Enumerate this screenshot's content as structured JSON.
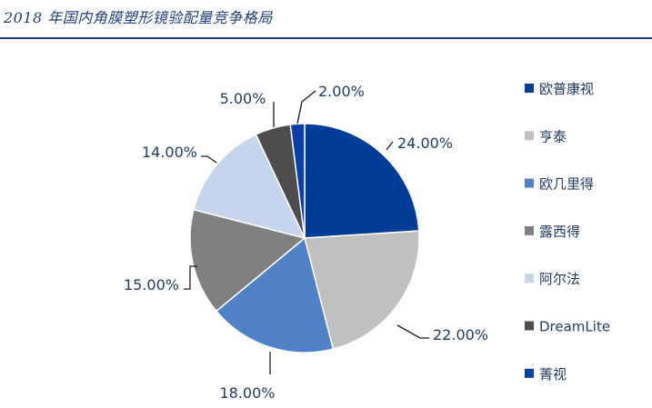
{
  "header": {
    "title": "2018 年国内角膜塑形镜验配量竞争格局"
  },
  "chart_data": {
    "type": "pie",
    "title": "2018 年国内角膜塑形镜验配量竞争格局",
    "series": [
      {
        "name": "欧普康视",
        "value": 24,
        "label": "24.00%",
        "color": "#003d99"
      },
      {
        "name": "亨泰",
        "value": 22,
        "label": "22.00%",
        "color": "#c0c0c0"
      },
      {
        "name": "欧几里得",
        "value": 18,
        "label": "18.00%",
        "color": "#4f81c7"
      },
      {
        "name": "露西得",
        "value": 15,
        "label": "15.00%",
        "color": "#808080"
      },
      {
        "name": "阿尔法",
        "value": 14,
        "label": "14.00%",
        "color": "#c5d5ee"
      },
      {
        "name": "DreamLite",
        "value": 5,
        "label": "5.00%",
        "color": "#4d4d4d"
      },
      {
        "name": "菁视",
        "value": 2,
        "label": "2.00%",
        "color": "#0b3fa8"
      }
    ],
    "legend_position": "right"
  }
}
